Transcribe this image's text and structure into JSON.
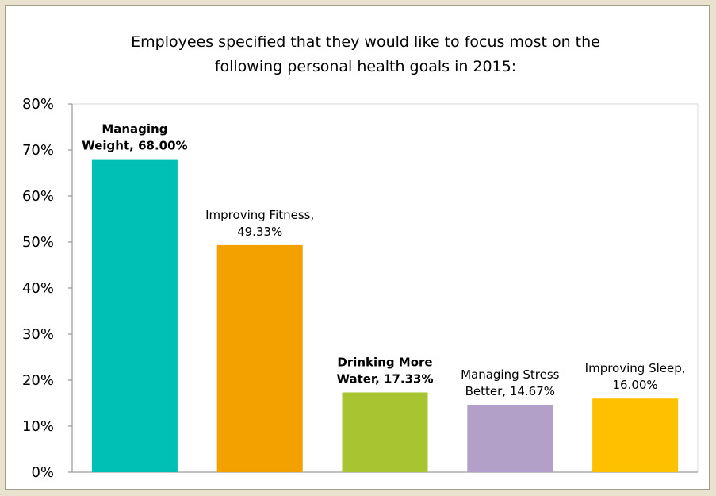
{
  "chart_data": {
    "type": "bar",
    "title": "Employees specified that they would like to focus most on the following personal health goals in 2015:",
    "title_lines": [
      "Employees specified that they would like to focus most on the",
      "following personal health goals in 2015:"
    ],
    "categories": [
      "Managing Weight",
      "Improving Fitness",
      "Drinking More Water",
      "Managing Stress Better",
      "Improving Sleep"
    ],
    "values": [
      68.0,
      49.33,
      17.33,
      14.67,
      16.0
    ],
    "colors": [
      "#00bfb4",
      "#f3a100",
      "#a9c431",
      "#b3a0c9",
      "#ffc000"
    ],
    "data_labels": [
      {
        "lines": [
          "Managing",
          "Weight, 68.00%"
        ],
        "bold": true
      },
      {
        "lines": [
          "Improving Fitness,",
          "49.33%"
        ],
        "bold": false
      },
      {
        "lines": [
          "Drinking More",
          "Water, 17.33%"
        ],
        "bold": true
      },
      {
        "lines": [
          "Managing Stress",
          "Better, 14.67%"
        ],
        "bold": false
      },
      {
        "lines": [
          "Improving Sleep,",
          "16.00%"
        ],
        "bold": false
      }
    ],
    "y_ticks": [
      "0%",
      "10%",
      "20%",
      "30%",
      "40%",
      "50%",
      "60%",
      "70%",
      "80%"
    ],
    "y_tick_values": [
      0,
      10,
      20,
      30,
      40,
      50,
      60,
      70,
      80
    ],
    "ylim": [
      0,
      80
    ],
    "xlabel": "",
    "ylabel": "",
    "grid": false,
    "legend": "none"
  }
}
